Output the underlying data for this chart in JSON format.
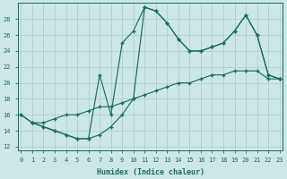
{
  "xlabel": "Humidex (Indice chaleur)",
  "bg_color": "#cce8e4",
  "line_color": "#1d6b5e",
  "grid_color": "#aacfca",
  "xlim": [
    -0.3,
    23.3
  ],
  "ylim": [
    11.5,
    30.0
  ],
  "xticks": [
    0,
    1,
    2,
    3,
    4,
    5,
    6,
    7,
    8,
    9,
    10,
    11,
    12,
    13,
    14,
    15,
    16,
    17,
    18,
    19,
    20,
    21,
    22,
    23
  ],
  "yticks": [
    12,
    14,
    16,
    18,
    20,
    22,
    24,
    26,
    28
  ],
  "line1_x": [
    0,
    1,
    2,
    3,
    4,
    5,
    6,
    7,
    8,
    9,
    10,
    11,
    12,
    13,
    14,
    15,
    16,
    17,
    18,
    19,
    20,
    21,
    22,
    23
  ],
  "line1_y": [
    16.0,
    15.0,
    15.0,
    15.5,
    16.0,
    16.0,
    16.5,
    17.0,
    17.0,
    17.5,
    18.0,
    18.5,
    19.0,
    19.5,
    20.0,
    20.0,
    20.5,
    21.0,
    21.0,
    21.5,
    21.5,
    21.5,
    20.5,
    20.5
  ],
  "line2_x": [
    0,
    1,
    2,
    3,
    4,
    5,
    6,
    7,
    8,
    9,
    10,
    11,
    12,
    13,
    14,
    15,
    16,
    17,
    18,
    19,
    20,
    21,
    22,
    23
  ],
  "line2_y": [
    16.0,
    15.0,
    14.5,
    14.0,
    13.5,
    13.0,
    13.0,
    21.0,
    16.0,
    25.0,
    26.5,
    29.5,
    29.0,
    27.5,
    25.5,
    24.0,
    24.0,
    24.5,
    25.0,
    26.5,
    28.5,
    26.0,
    21.0,
    20.5
  ],
  "line3_x": [
    1,
    2,
    3,
    4,
    5,
    6,
    7,
    8,
    9,
    10,
    11,
    12,
    13,
    14,
    15,
    16,
    17,
    18,
    19,
    20,
    21,
    22,
    23
  ],
  "line3_y": [
    15.0,
    14.5,
    14.0,
    13.5,
    13.0,
    13.0,
    13.5,
    14.5,
    16.0,
    18.0,
    29.5,
    29.0,
    27.5,
    25.5,
    24.0,
    24.0,
    24.5,
    25.0,
    26.5,
    28.5,
    26.0,
    21.0,
    20.5
  ]
}
